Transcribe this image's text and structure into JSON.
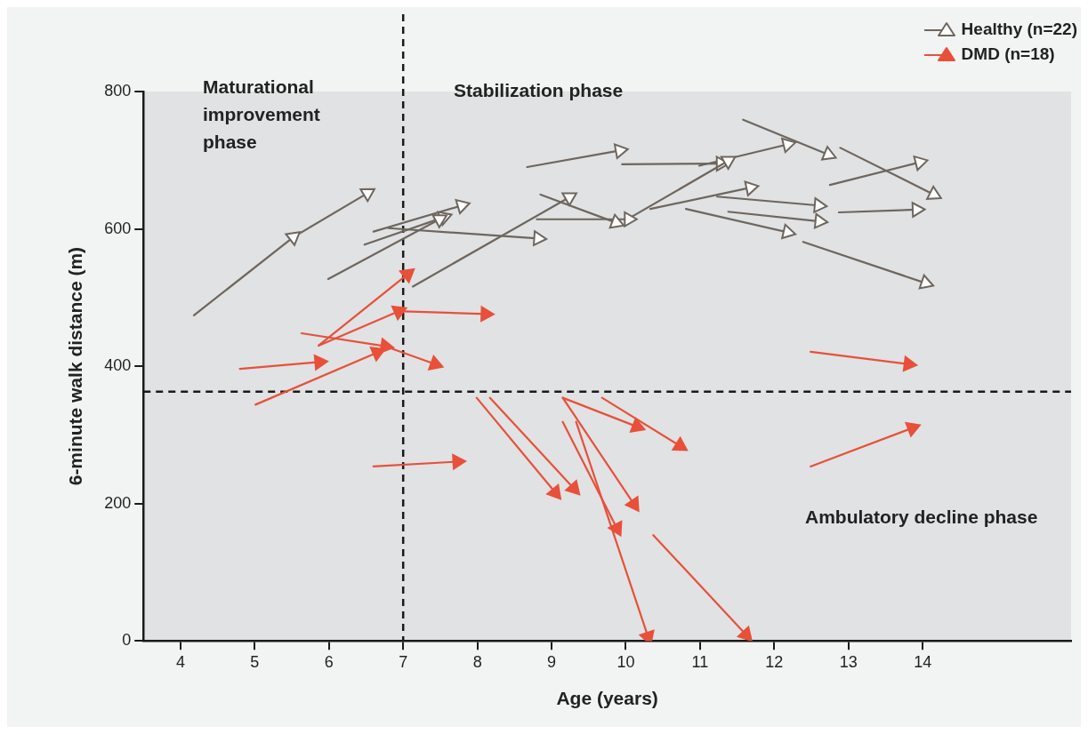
{
  "chart_data": {
    "type": "line",
    "xlabel": "Age (years)",
    "ylabel": "6-minute walk distance (m)",
    "xlim": [
      3.5,
      16
    ],
    "xticks": [
      4,
      5,
      6,
      7,
      8,
      9,
      10,
      11,
      12,
      13,
      14
    ],
    "ylim": [
      0,
      800
    ],
    "yticks": [
      0,
      200,
      400,
      600,
      800
    ],
    "grid": false,
    "legend": "top right",
    "marker": "triangle",
    "line_style": "solid",
    "ref_lines": [
      {
        "axis": "x",
        "value": 7,
        "color": "#1a1a1a",
        "line_style": "dashed"
      },
      {
        "axis": "y",
        "value": 363,
        "color": "#1a1a1a",
        "line_style": "dashed"
      }
    ],
    "annotations": [
      "Maturational improvement phase",
      "Stabilization phase",
      "Ambulatory decline phase"
    ],
    "series": [
      {
        "name": "Healthy (n=22)",
        "color": "#6e665e",
        "x": [
          4.18,
          5.52,
          6.52
        ],
        "values": [
          474,
          588,
          652
        ]
      },
      {
        "color": "#6e665e",
        "x": [
          5.99,
          7.49
        ],
        "values": [
          527,
          614
        ]
      },
      {
        "color": "#6e665e",
        "x": [
          6.48,
          7.55
        ],
        "values": [
          577,
          617
        ]
      },
      {
        "color": "#6e665e",
        "x": [
          6.6,
          7.79
        ],
        "values": [
          596,
          634
        ]
      },
      {
        "color": "#6e665e",
        "x": [
          6.8,
          8.82
        ],
        "values": [
          601,
          586
        ]
      },
      {
        "color": "#6e665e",
        "x": [
          7.13,
          9.24
        ],
        "values": [
          516,
          646
        ]
      },
      {
        "color": "#6e665e",
        "x": [
          8.67,
          9.92
        ],
        "values": [
          690,
          714
        ]
      },
      {
        "color": "#6e665e",
        "x": [
          8.85,
          9.87
        ],
        "values": [
          650,
          609
        ]
      },
      {
        "color": "#6e665e",
        "x": [
          8.8,
          10.04
        ],
        "values": [
          614,
          614
        ]
      },
      {
        "color": "#6e665e",
        "x": [
          10.07,
          11.38
        ],
        "values": [
          617,
          699
        ]
      },
      {
        "color": "#6e665e",
        "x": [
          9.95,
          11.28
        ],
        "values": [
          694,
          695
        ]
      },
      {
        "color": "#6e665e",
        "x": [
          10.99,
          12.18
        ],
        "values": [
          692,
          723
        ]
      },
      {
        "color": "#6e665e",
        "x": [
          11.58,
          12.73
        ],
        "values": [
          759,
          708
        ]
      },
      {
        "color": "#6e665e",
        "x": [
          10.33,
          11.68
        ],
        "values": [
          629,
          660
        ]
      },
      {
        "color": "#6e665e",
        "x": [
          11.23,
          12.6
        ],
        "values": [
          647,
          634
        ]
      },
      {
        "color": "#6e665e",
        "x": [
          11.38,
          12.61
        ],
        "values": [
          625,
          611
        ]
      },
      {
        "color": "#6e665e",
        "x": [
          10.81,
          12.18
        ],
        "values": [
          629,
          595
        ]
      },
      {
        "color": "#6e665e",
        "x": [
          12.75,
          13.96
        ],
        "values": [
          664,
          697
        ]
      },
      {
        "color": "#6e665e",
        "x": [
          12.89,
          14.15
        ],
        "values": [
          718,
          650
        ]
      },
      {
        "color": "#6e665e",
        "x": [
          12.87,
          13.92
        ],
        "values": [
          624,
          628
        ]
      },
      {
        "color": "#6e665e",
        "x": [
          12.39,
          14.04
        ],
        "values": [
          581,
          521
        ]
      },
      {
        "name": "DMD (n=18)",
        "color": "#e8503a",
        "x": [
          5.86,
          7.06
        ],
        "values": [
          430,
          534
        ]
      },
      {
        "color": "#e8503a",
        "x": [
          5.86,
          6.94
        ],
        "values": [
          430,
          480
        ]
      },
      {
        "color": "#e8503a",
        "x": [
          7.0,
          8.11
        ],
        "values": [
          480,
          476
        ]
      },
      {
        "color": "#e8503a",
        "x": [
          5.63,
          6.76,
          7.43
        ],
        "values": [
          448,
          429,
          403
        ]
      },
      {
        "color": "#e8503a",
        "x": [
          4.8,
          5.87
        ],
        "values": [
          396,
          406
        ]
      },
      {
        "color": "#e8503a",
        "x": [
          5.01,
          6.65
        ],
        "values": [
          344,
          420
        ]
      },
      {
        "color": "#e8503a",
        "x": [
          6.6,
          7.73
        ],
        "values": [
          254,
          261
        ]
      },
      {
        "color": "#e8503a",
        "x": [
          7.99,
          9.05
        ],
        "values": [
          354,
          216
        ]
      },
      {
        "color": "#e8503a",
        "x": [
          8.17,
          9.3
        ],
        "values": [
          354,
          222
        ]
      },
      {
        "color": "#e8503a",
        "x": [
          9.15,
          10.15
        ],
        "values": [
          354,
          312
        ]
      },
      {
        "color": "#e8503a",
        "x": [
          9.15,
          10.11
        ],
        "values": [
          354,
          199
        ]
      },
      {
        "color": "#e8503a",
        "x": [
          9.68,
          10.73
        ],
        "values": [
          354,
          284
        ]
      },
      {
        "color": "#e8503a",
        "x": [
          9.15,
          9.88
        ],
        "values": [
          319,
          164
        ]
      },
      {
        "color": "#e8503a",
        "x": [
          9.33,
          10.3
        ],
        "values": [
          319,
          6
        ]
      },
      {
        "color": "#e8503a",
        "x": [
          10.37,
          11.62
        ],
        "values": [
          154,
          9
        ]
      },
      {
        "color": "#e8503a",
        "x": [
          12.49,
          13.81
        ],
        "values": [
          421,
          403
        ]
      },
      {
        "color": "#e8503a",
        "x": [
          12.49,
          13.86
        ],
        "values": [
          254,
          310
        ]
      }
    ]
  }
}
